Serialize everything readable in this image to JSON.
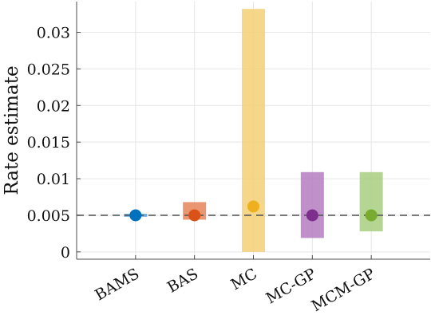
{
  "chart_data": {
    "type": "scatter",
    "title": "",
    "xlabel": "",
    "ylabel": "Rate estimate",
    "categories": [
      "BAMS",
      "BAS",
      "MC",
      "MC-GP",
      "MCM-GP"
    ],
    "estimates": [
      0.005,
      0.005,
      0.0062,
      0.005,
      0.005
    ],
    "interval_low": [
      0.0048,
      0.0044,
      0.0,
      0.0019,
      0.0028
    ],
    "interval_high": [
      0.0052,
      0.0068,
      0.0332,
      0.0109,
      0.0109
    ],
    "reference_line": 0.005,
    "ylim": [
      -0.001,
      0.0342
    ],
    "yticks": [
      0,
      0.005,
      0.01,
      0.015,
      0.02,
      0.025,
      0.03
    ],
    "ytick_labels": [
      "0",
      "0.005",
      "0.01",
      "0.015",
      "0.02",
      "0.025",
      "0.03"
    ],
    "grid": true,
    "colors": {
      "marker": [
        "#0072bd",
        "#d95319",
        "#edb120",
        "#7e2f8e",
        "#77ac30"
      ],
      "interval": [
        "#4d9fd9",
        "#e8845a",
        "#f5d076",
        "#b47cc0",
        "#a7cf7f"
      ],
      "reference_line": "#555555",
      "grid": "#e6e6e6",
      "axis": "#4d4d4d"
    }
  }
}
